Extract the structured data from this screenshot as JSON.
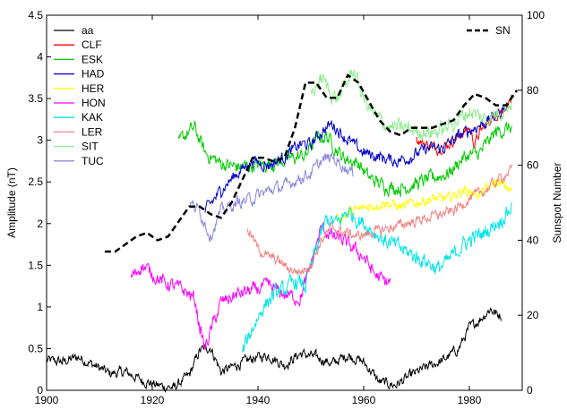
{
  "chart_data": {
    "type": "line",
    "xlabel": "",
    "ylabel": "Amplitude (nT)",
    "y2label": "Sunspot Number",
    "xlim": [
      1900,
      1990
    ],
    "ylim": [
      0,
      4.5
    ],
    "y2lim": [
      0,
      100
    ],
    "xticks": [
      1900,
      1920,
      1940,
      1960,
      1980
    ],
    "yticks": [
      0,
      0.5,
      1,
      1.5,
      2,
      2.5,
      3,
      3.5,
      4,
      4.5
    ],
    "y2ticks": [
      0,
      20,
      40,
      60,
      80,
      100
    ],
    "grid": false,
    "legend_placement": "top-left",
    "legend2_placement": "top-right",
    "series": [
      {
        "name": "aa",
        "color": "#000000",
        "noise": 0.05,
        "points": [
          [
            1900,
            0.36
          ],
          [
            1903,
            0.34
          ],
          [
            1906,
            0.4
          ],
          [
            1909,
            0.3
          ],
          [
            1912,
            0.2
          ],
          [
            1915,
            0.22
          ],
          [
            1918,
            0.12
          ],
          [
            1921,
            0.06
          ],
          [
            1924,
            0.03
          ],
          [
            1927,
            0.18
          ],
          [
            1929,
            0.48
          ],
          [
            1931,
            0.52
          ],
          [
            1933,
            0.22
          ],
          [
            1936,
            0.3
          ],
          [
            1939,
            0.38
          ],
          [
            1942,
            0.42
          ],
          [
            1945,
            0.3
          ],
          [
            1948,
            0.44
          ],
          [
            1951,
            0.4
          ],
          [
            1954,
            0.32
          ],
          [
            1957,
            0.42
          ],
          [
            1960,
            0.34
          ],
          [
            1963,
            0.1
          ],
          [
            1966,
            0.06
          ],
          [
            1969,
            0.18
          ],
          [
            1972,
            0.28
          ],
          [
            1975,
            0.36
          ],
          [
            1978,
            0.5
          ],
          [
            1980,
            0.75
          ],
          [
            1982,
            0.85
          ],
          [
            1984,
            0.98
          ],
          [
            1985,
            0.92
          ],
          [
            1986,
            0.9
          ]
        ]
      },
      {
        "name": "CLF",
        "color": "#ff0000",
        "noise": 0.05,
        "points": [
          [
            1970,
            3.0
          ],
          [
            1972,
            2.95
          ],
          [
            1974,
            2.9
          ],
          [
            1976,
            2.95
          ],
          [
            1978,
            3.05
          ],
          [
            1980,
            3.15
          ],
          [
            1981,
            2.95
          ],
          [
            1982,
            3.1
          ],
          [
            1984,
            3.25
          ],
          [
            1986,
            3.35
          ],
          [
            1988,
            3.5
          ]
        ]
      },
      {
        "name": "ESK",
        "color": "#00cc00",
        "noise": 0.07,
        "points": [
          [
            1925,
            2.95
          ],
          [
            1926,
            3.05
          ],
          [
            1928,
            3.15
          ],
          [
            1930,
            2.85
          ],
          [
            1933,
            2.72
          ],
          [
            1936,
            2.68
          ],
          [
            1940,
            2.7
          ],
          [
            1943,
            2.72
          ],
          [
            1946,
            2.78
          ],
          [
            1949,
            2.82
          ],
          [
            1951,
            3.02
          ],
          [
            1953,
            3.05
          ],
          [
            1956,
            2.8
          ],
          [
            1959,
            2.72
          ],
          [
            1961,
            2.55
          ],
          [
            1964,
            2.45
          ],
          [
            1967,
            2.42
          ],
          [
            1970,
            2.48
          ],
          [
            1973,
            2.55
          ],
          [
            1976,
            2.6
          ],
          [
            1979,
            2.8
          ],
          [
            1982,
            2.85
          ],
          [
            1985,
            3.1
          ],
          [
            1988,
            3.15
          ]
        ]
      },
      {
        "name": "HAD",
        "color": "#0000cc",
        "noise": 0.06,
        "points": [
          [
            1930,
            2.15
          ],
          [
            1933,
            2.4
          ],
          [
            1936,
            2.6
          ],
          [
            1939,
            2.75
          ],
          [
            1942,
            2.7
          ],
          [
            1945,
            2.8
          ],
          [
            1948,
            2.95
          ],
          [
            1950,
            2.95
          ],
          [
            1952,
            3.1
          ],
          [
            1954,
            3.2
          ],
          [
            1957,
            3.0
          ],
          [
            1960,
            2.85
          ],
          [
            1963,
            2.8
          ],
          [
            1966,
            2.75
          ],
          [
            1969,
            2.8
          ],
          [
            1972,
            2.9
          ],
          [
            1975,
            2.9
          ],
          [
            1978,
            3.05
          ],
          [
            1981,
            3.15
          ],
          [
            1984,
            3.25
          ],
          [
            1987,
            3.4
          ]
        ]
      },
      {
        "name": "HER",
        "color": "#ffff00",
        "noise": 0.05,
        "points": [
          [
            1955,
            2.05
          ],
          [
            1958,
            2.15
          ],
          [
            1961,
            2.2
          ],
          [
            1964,
            2.25
          ],
          [
            1967,
            2.2
          ],
          [
            1970,
            2.25
          ],
          [
            1973,
            2.3
          ],
          [
            1976,
            2.3
          ],
          [
            1979,
            2.4
          ],
          [
            1982,
            2.35
          ],
          [
            1985,
            2.5
          ],
          [
            1988,
            2.4
          ]
        ]
      },
      {
        "name": "HON",
        "color": "#ff00ff",
        "noise": 0.07,
        "points": [
          [
            1916,
            1.35
          ],
          [
            1918,
            1.5
          ],
          [
            1920,
            1.4
          ],
          [
            1922,
            1.3
          ],
          [
            1924,
            1.25
          ],
          [
            1926,
            1.2
          ],
          [
            1928,
            1.1
          ],
          [
            1929,
            0.75
          ],
          [
            1930,
            0.5
          ],
          [
            1931,
            0.7
          ],
          [
            1933,
            1.05
          ],
          [
            1936,
            1.15
          ],
          [
            1939,
            1.2
          ],
          [
            1942,
            1.25
          ],
          [
            1945,
            1.15
          ],
          [
            1948,
            1.1
          ],
          [
            1950,
            1.5
          ],
          [
            1952,
            1.95
          ],
          [
            1954,
            1.85
          ],
          [
            1956,
            1.8
          ],
          [
            1958,
            1.7
          ],
          [
            1960,
            1.6
          ],
          [
            1962,
            1.4
          ],
          [
            1964,
            1.3
          ],
          [
            1965,
            1.3
          ]
        ]
      },
      {
        "name": "KAK",
        "color": "#00e5e5",
        "noise": 0.08,
        "points": [
          [
            1937,
            0.45
          ],
          [
            1939,
            0.75
          ],
          [
            1941,
            1.0
          ],
          [
            1943,
            1.15
          ],
          [
            1945,
            1.2
          ],
          [
            1947,
            1.3
          ],
          [
            1949,
            1.25
          ],
          [
            1951,
            1.7
          ],
          [
            1953,
            2.05
          ],
          [
            1955,
            2.0
          ],
          [
            1957,
            2.15
          ],
          [
            1959,
            2.05
          ],
          [
            1961,
            1.95
          ],
          [
            1964,
            1.8
          ],
          [
            1967,
            1.7
          ],
          [
            1970,
            1.6
          ],
          [
            1972,
            1.55
          ],
          [
            1974,
            1.45
          ],
          [
            1976,
            1.55
          ],
          [
            1978,
            1.7
          ],
          [
            1980,
            1.8
          ],
          [
            1983,
            1.9
          ],
          [
            1986,
            2.05
          ],
          [
            1988,
            2.2
          ]
        ]
      },
      {
        "name": "LER",
        "color": "#f08080",
        "noise": 0.05,
        "points": [
          [
            1938,
            1.95
          ],
          [
            1940,
            1.7
          ],
          [
            1942,
            1.6
          ],
          [
            1944,
            1.55
          ],
          [
            1946,
            1.45
          ],
          [
            1948,
            1.42
          ],
          [
            1950,
            1.5
          ],
          [
            1952,
            1.8
          ],
          [
            1954,
            1.95
          ],
          [
            1956,
            1.9
          ],
          [
            1959,
            1.85
          ],
          [
            1962,
            1.9
          ],
          [
            1965,
            1.95
          ],
          [
            1968,
            2.0
          ],
          [
            1971,
            2.05
          ],
          [
            1974,
            2.1
          ],
          [
            1977,
            2.15
          ],
          [
            1980,
            2.3
          ],
          [
            1983,
            2.4
          ],
          [
            1986,
            2.55
          ],
          [
            1988,
            2.65
          ]
        ]
      },
      {
        "name": "SIT",
        "color": "#90ee90",
        "noise": 0.08,
        "points": [
          [
            1950,
            3.55
          ],
          [
            1952,
            3.75
          ],
          [
            1954,
            3.55
          ],
          [
            1955,
            3.5
          ],
          [
            1957,
            3.7
          ],
          [
            1958,
            3.85
          ],
          [
            1960,
            3.5
          ],
          [
            1962,
            3.3
          ],
          [
            1965,
            3.15
          ],
          [
            1968,
            3.15
          ],
          [
            1971,
            3.1
          ],
          [
            1974,
            3.1
          ],
          [
            1977,
            3.2
          ],
          [
            1980,
            3.35
          ],
          [
            1983,
            3.25
          ],
          [
            1986,
            3.35
          ],
          [
            1988,
            3.45
          ]
        ]
      },
      {
        "name": "TUC",
        "color": "#8888dd",
        "noise": 0.06,
        "points": [
          [
            1927,
            2.25
          ],
          [
            1929,
            2.15
          ],
          [
            1931,
            1.85
          ],
          [
            1933,
            2.15
          ],
          [
            1936,
            2.25
          ],
          [
            1939,
            2.3
          ],
          [
            1942,
            2.4
          ],
          [
            1945,
            2.45
          ],
          [
            1948,
            2.55
          ],
          [
            1950,
            2.6
          ],
          [
            1952,
            2.75
          ],
          [
            1954,
            2.8
          ],
          [
            1956,
            2.7
          ],
          [
            1958,
            2.6
          ]
        ]
      }
    ],
    "series2": [
      {
        "name": "SN",
        "color": "#000000",
        "dashed": true,
        "points": [
          [
            1911,
            37
          ],
          [
            1913,
            37
          ],
          [
            1915,
            39
          ],
          [
            1917,
            41
          ],
          [
            1919,
            42
          ],
          [
            1921,
            40
          ],
          [
            1923,
            41
          ],
          [
            1925,
            45
          ],
          [
            1927,
            49
          ],
          [
            1929,
            49
          ],
          [
            1931,
            47
          ],
          [
            1933,
            46
          ],
          [
            1935,
            50
          ],
          [
            1937,
            56
          ],
          [
            1939,
            62
          ],
          [
            1941,
            62
          ],
          [
            1943,
            61
          ],
          [
            1945,
            62
          ],
          [
            1947,
            70
          ],
          [
            1949,
            82
          ],
          [
            1951,
            82
          ],
          [
            1953,
            78
          ],
          [
            1955,
            78
          ],
          [
            1957,
            84
          ],
          [
            1959,
            82
          ],
          [
            1961,
            77
          ],
          [
            1963,
            72
          ],
          [
            1965,
            69
          ],
          [
            1967,
            68
          ],
          [
            1969,
            70
          ],
          [
            1971,
            70
          ],
          [
            1973,
            70
          ],
          [
            1975,
            71
          ],
          [
            1977,
            72
          ],
          [
            1979,
            76
          ],
          [
            1981,
            79
          ],
          [
            1983,
            78
          ],
          [
            1985,
            76
          ],
          [
            1987,
            76
          ],
          [
            1989,
            80
          ]
        ]
      }
    ]
  }
}
